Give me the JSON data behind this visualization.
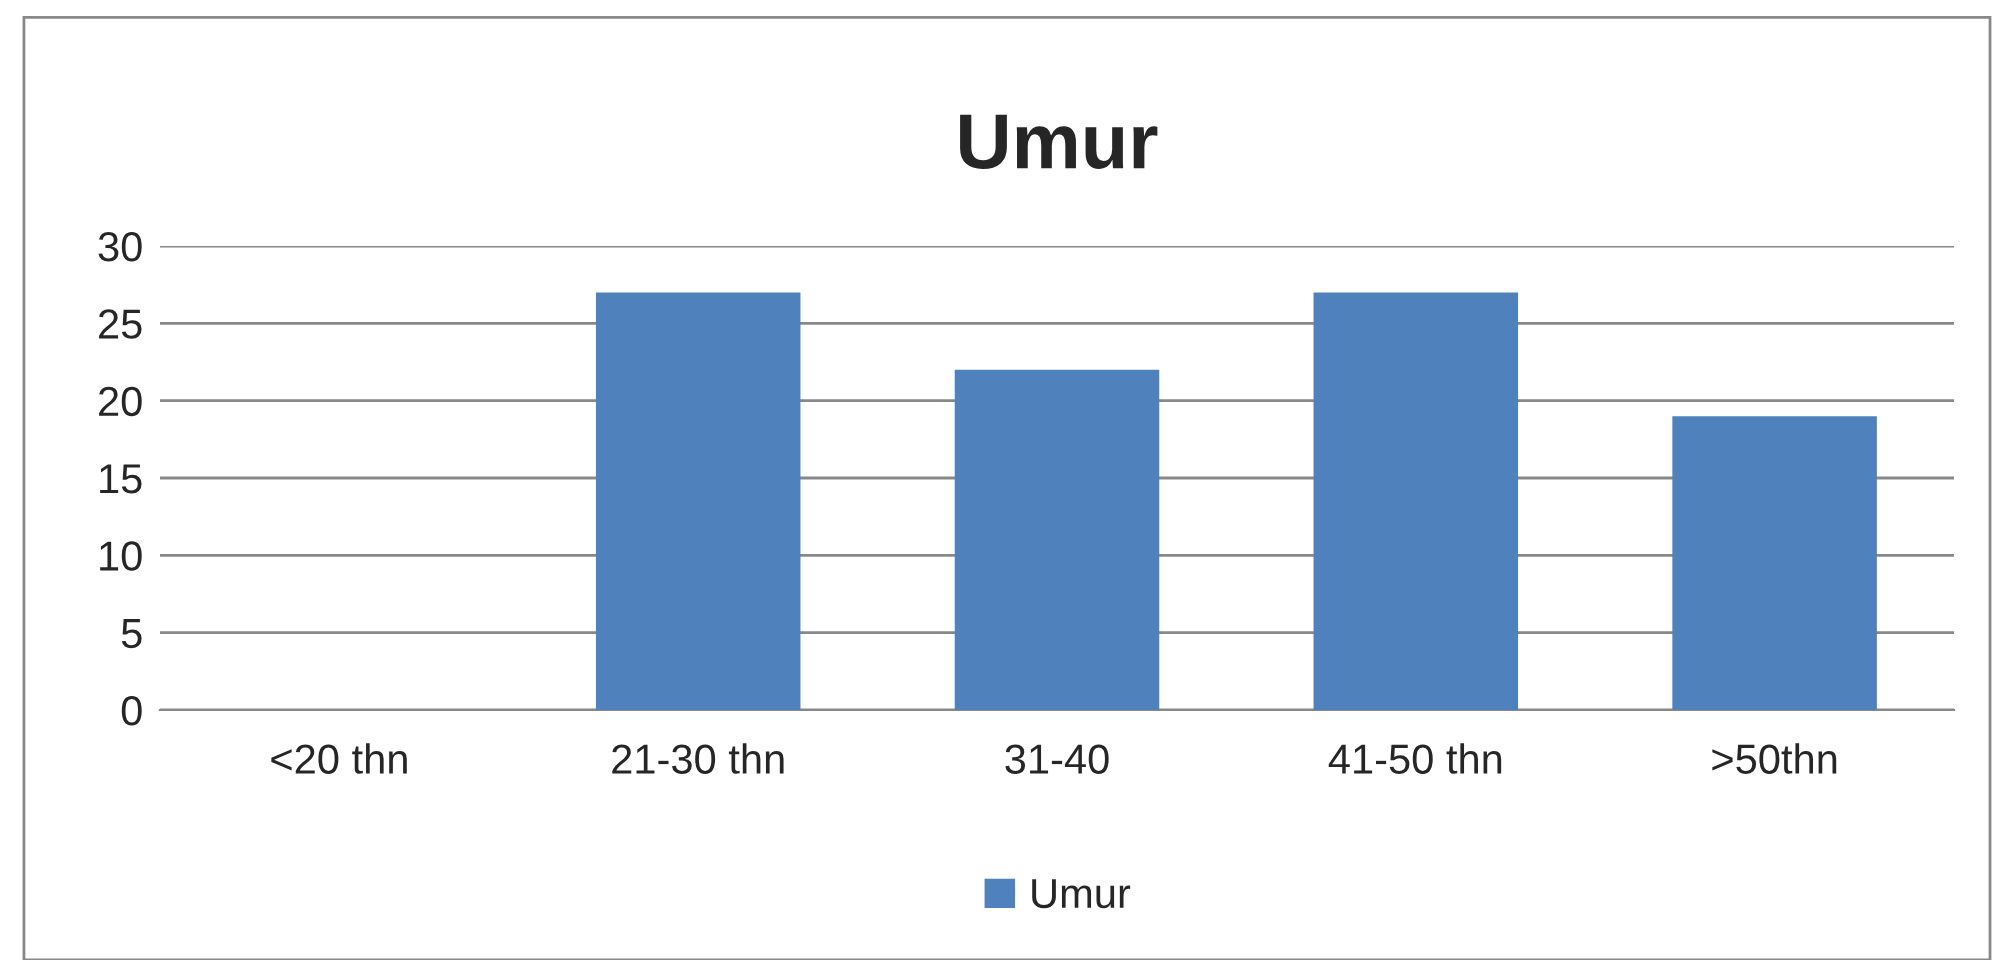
{
  "chart_data": {
    "type": "bar",
    "title": "Umur",
    "categories": [
      "<20 thn",
      "21-30 thn",
      "31-40",
      "41-50 thn",
      ">50thn"
    ],
    "series": [
      {
        "name": "Umur",
        "color": "#4f81bd",
        "values": [
          0,
          27,
          22,
          27,
          19
        ]
      }
    ],
    "ylim": [
      0,
      30
    ],
    "yticks": [
      0,
      5,
      10,
      15,
      20,
      25,
      30
    ],
    "grid": "y",
    "legend": "bottom"
  }
}
